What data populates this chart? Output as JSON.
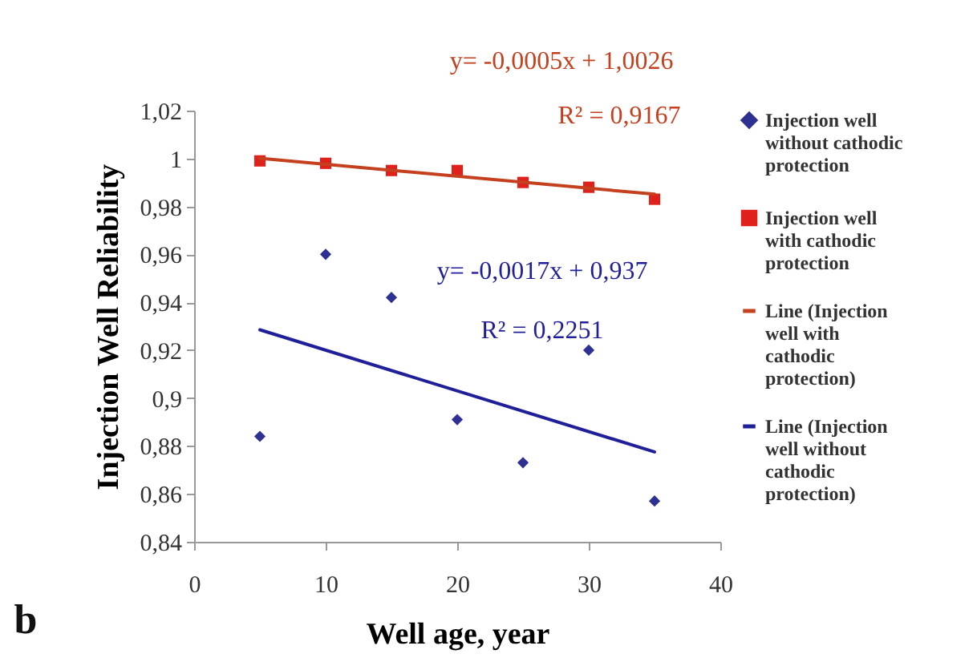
{
  "chart_data": {
    "type": "scatter",
    "xlabel": "Well age, year",
    "ylabel": "Injection Well Reliability",
    "xlim": [
      0,
      40
    ],
    "xticks": [
      0,
      10,
      20,
      30,
      40
    ],
    "ylim": [
      0.84,
      1.02
    ],
    "yticks": [
      {
        "value": 0.84,
        "label": "0,84"
      },
      {
        "value": 0.86,
        "label": "0,86"
      },
      {
        "value": 0.88,
        "label": "0,88"
      },
      {
        "value": 0.9,
        "label": "0,9"
      },
      {
        "value": 0.92,
        "label": "0,92"
      },
      {
        "value": 0.94,
        "label": "0,94"
      },
      {
        "value": 0.96,
        "label": "0,96"
      },
      {
        "value": 0.98,
        "label": "0,98"
      },
      {
        "value": 1,
        "label": "1"
      },
      {
        "value": 1.02,
        "label": "1,02"
      }
    ],
    "grid": false,
    "legend": "right",
    "series": [
      {
        "name": "Injection well without cathodic protection",
        "type": "scatter",
        "marker": "diamond",
        "color": "#2e3192",
        "x": [
          5,
          10,
          15,
          20,
          25,
          30,
          35
        ],
        "values": [
          0.884,
          0.96,
          0.942,
          0.891,
          0.873,
          0.92,
          0.857
        ]
      },
      {
        "name": "Injection well with cathodic protection",
        "type": "scatter",
        "marker": "square",
        "color": "#e0201b",
        "x": [
          5,
          10,
          15,
          20,
          25,
          30,
          35
        ],
        "values": [
          0.999,
          0.998,
          0.995,
          0.995,
          0.99,
          0.988,
          0.983
        ]
      },
      {
        "name": "Line (Injection well with cathodic protection)",
        "type": "line",
        "color": "#c4401f",
        "x": [
          5,
          35
        ],
        "values": [
          1.0001,
          0.9851
        ]
      },
      {
        "name": "Line (Injection well without cathodic protection)",
        "type": "line",
        "color": "#1f1f99",
        "x": [
          5,
          35
        ],
        "values": [
          0.9285,
          0.8775
        ]
      }
    ],
    "annotations": [
      "y= -0,0005x + 1,0026",
      "R² = 0,9167",
      "y= -0,0017x + 0,937",
      "R² = 0,2251",
      "b"
    ]
  }
}
